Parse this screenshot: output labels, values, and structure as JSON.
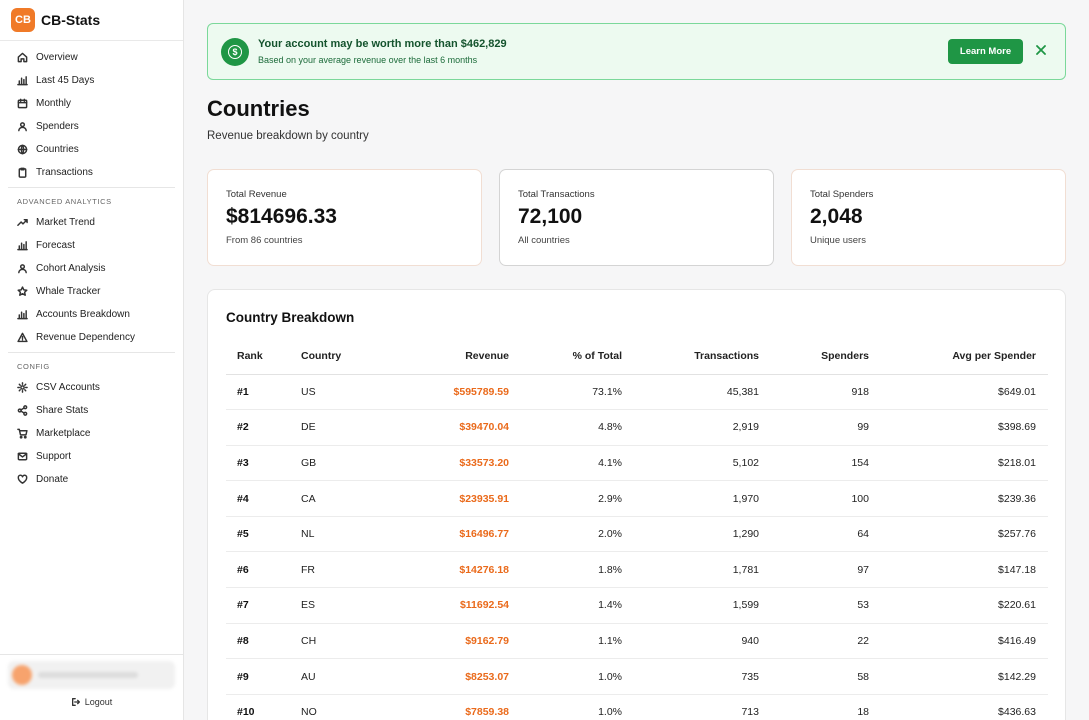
{
  "app": {
    "logo_text": "CB",
    "name": "CB-Stats",
    "accent": "#f07a28"
  },
  "sidebar": {
    "main_items": [
      {
        "label": "Overview",
        "icon": "home-icon"
      },
      {
        "label": "Last 45 Days",
        "icon": "bar-chart-icon"
      },
      {
        "label": "Monthly",
        "icon": "calendar-icon"
      },
      {
        "label": "Spenders",
        "icon": "users-icon"
      },
      {
        "label": "Countries",
        "icon": "globe-icon"
      },
      {
        "label": "Transactions",
        "icon": "clipboard-icon"
      }
    ],
    "advanced_header": "ADVANCED ANALYTICS",
    "advanced_items": [
      {
        "label": "Market Trend",
        "icon": "trend-icon"
      },
      {
        "label": "Forecast",
        "icon": "bar-chart-icon"
      },
      {
        "label": "Cohort Analysis",
        "icon": "users-icon"
      },
      {
        "label": "Whale Tracker",
        "icon": "star-icon"
      },
      {
        "label": "Accounts Breakdown",
        "icon": "bar-chart-icon"
      },
      {
        "label": "Revenue Dependency",
        "icon": "warning-icon"
      }
    ],
    "config_header": "CONFIG",
    "config_items": [
      {
        "label": "CSV Accounts",
        "icon": "gear-icon"
      },
      {
        "label": "Share Stats",
        "icon": "share-icon"
      },
      {
        "label": "Marketplace",
        "icon": "cart-icon"
      },
      {
        "label": "Support",
        "icon": "mail-icon"
      },
      {
        "label": "Donate",
        "icon": "heart-icon"
      }
    ],
    "logout_label": "Logout"
  },
  "banner": {
    "title": "Your account may be worth more than $462,829",
    "subtitle": "Based on your average revenue over the last 6 months",
    "button_label": "Learn More",
    "icon": "dollar-icon",
    "color": "#1f9645"
  },
  "page": {
    "title": "Countries",
    "subtitle": "Revenue breakdown by country"
  },
  "stats": [
    {
      "label": "Total Revenue",
      "value": "$814696.33",
      "sub": "From 86 countries"
    },
    {
      "label": "Total Transactions",
      "value": "72,100",
      "sub": "All countries"
    },
    {
      "label": "Total Spenders",
      "value": "2,048",
      "sub": "Unique users"
    }
  ],
  "breakdown": {
    "title": "Country Breakdown",
    "columns": [
      "Rank",
      "Country",
      "Revenue",
      "% of Total",
      "Transactions",
      "Spenders",
      "Avg per Spender"
    ],
    "rows": [
      [
        "#1",
        "US",
        "$595789.59",
        "73.1%",
        "45,381",
        "918",
        "$649.01"
      ],
      [
        "#2",
        "DE",
        "$39470.04",
        "4.8%",
        "2,919",
        "99",
        "$398.69"
      ],
      [
        "#3",
        "GB",
        "$33573.20",
        "4.1%",
        "5,102",
        "154",
        "$218.01"
      ],
      [
        "#4",
        "CA",
        "$23935.91",
        "2.9%",
        "1,970",
        "100",
        "$239.36"
      ],
      [
        "#5",
        "NL",
        "$16496.77",
        "2.0%",
        "1,290",
        "64",
        "$257.76"
      ],
      [
        "#6",
        "FR",
        "$14276.18",
        "1.8%",
        "1,781",
        "97",
        "$147.18"
      ],
      [
        "#7",
        "ES",
        "$11692.54",
        "1.4%",
        "1,599",
        "53",
        "$220.61"
      ],
      [
        "#8",
        "CH",
        "$9162.79",
        "1.1%",
        "940",
        "22",
        "$416.49"
      ],
      [
        "#9",
        "AU",
        "$8253.07",
        "1.0%",
        "735",
        "58",
        "$142.29"
      ],
      [
        "#10",
        "NO",
        "$7859.38",
        "1.0%",
        "713",
        "18",
        "$436.63"
      ]
    ],
    "revenue_color": "#ea6a1b"
  }
}
